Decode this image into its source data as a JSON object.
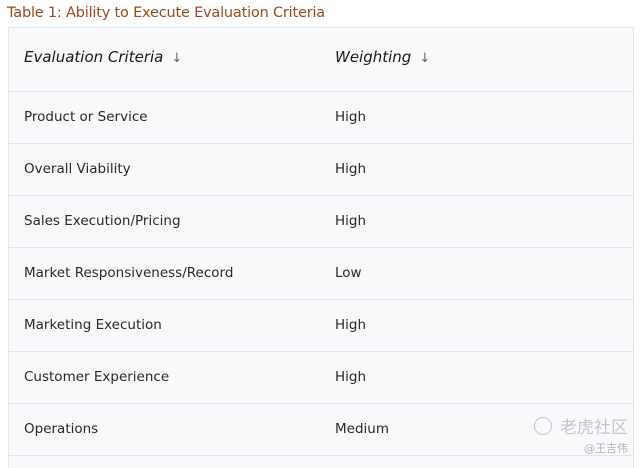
{
  "title": "Table 1: Ability to Execute Evaluation Criteria",
  "headers": [
    "Evaluation Criteria",
    "Weighting"
  ],
  "sort_icon": "↓",
  "rows": [
    {
      "criteria": "Product or Service",
      "weighting": "High"
    },
    {
      "criteria": "Overall Viability",
      "weighting": "High"
    },
    {
      "criteria": "Sales Execution/Pricing",
      "weighting": "High"
    },
    {
      "criteria": "Market Responsiveness/Record",
      "weighting": "Low"
    },
    {
      "criteria": "Marketing Execution",
      "weighting": "High"
    },
    {
      "criteria": "Customer Experience",
      "weighting": "High"
    },
    {
      "criteria": "Operations",
      "weighting": "Medium"
    }
  ],
  "watermark": {
    "site": "老虎社区",
    "author": "@王吉伟"
  }
}
